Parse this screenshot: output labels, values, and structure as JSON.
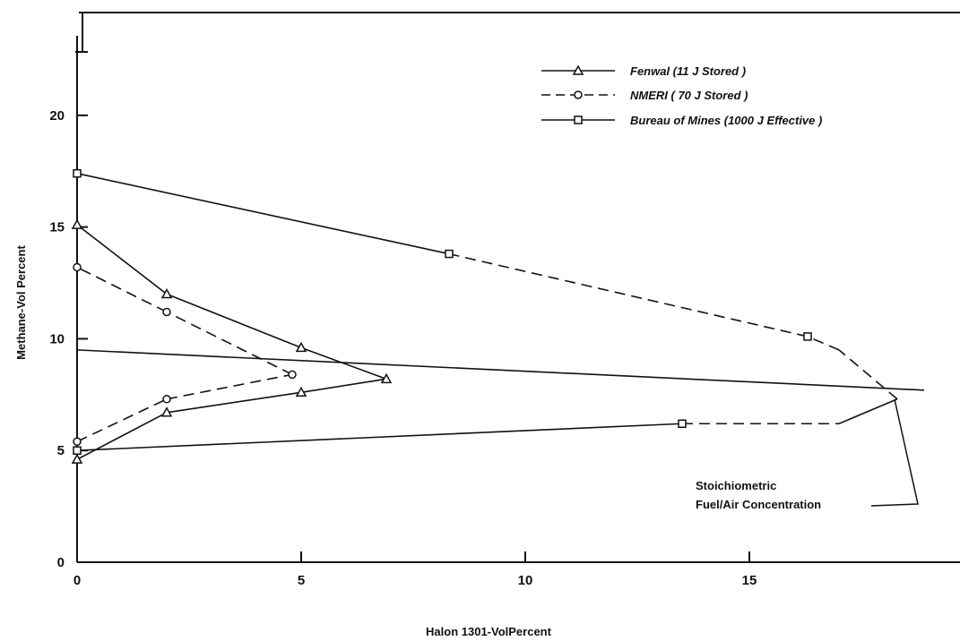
{
  "chart_data": {
    "type": "line",
    "title": "",
    "xlabel": "Halon 1301-VolPercent",
    "ylabel": "Methane-Vol Percent",
    "xlim": [
      0,
      19.7
    ],
    "ylim": [
      0,
      24.6
    ],
    "xticks": [
      0,
      5,
      10,
      15
    ],
    "xtick_labels": [
      "0",
      "5",
      "10",
      "15"
    ],
    "yticks": [
      0,
      5,
      10,
      15,
      20
    ],
    "ytick_labels": [
      "0",
      "5",
      "10",
      "15",
      "20"
    ],
    "legend_position": "top-right",
    "grid": false,
    "series": [
      {
        "name": "Fenwal (11 J Stored )",
        "marker": "triangle",
        "dash": "solid",
        "points": [
          [
            0,
            4.6
          ],
          [
            2,
            6.7
          ],
          [
            5,
            7.6
          ],
          [
            6.9,
            8.2
          ],
          [
            5,
            9.6
          ],
          [
            2,
            12.0
          ],
          [
            0,
            15.1
          ]
        ]
      },
      {
        "name": "NMERI ( 70 J Stored )",
        "marker": "circle",
        "dash": "dashed",
        "points": [
          [
            0,
            5.4
          ],
          [
            2,
            7.3
          ],
          [
            4.8,
            8.4
          ],
          [
            2,
            11.2
          ],
          [
            0,
            13.2
          ]
        ]
      },
      {
        "name": "Bureau of Mines (1000 J Effective )",
        "marker": "square",
        "dash": "solid",
        "points": [
          [
            0,
            5.0
          ],
          [
            13.5,
            6.2
          ],
          [
            17.0,
            6.2
          ],
          [
            18.3,
            7.3
          ],
          [
            17.0,
            9.5
          ],
          [
            16.3,
            10.1
          ],
          [
            8.3,
            13.8
          ],
          [
            0,
            17.4
          ],
          [
            0,
            18.0
          ]
        ],
        "markers_at": [
          0,
          1,
          5,
          6,
          7
        ],
        "dashed_segments": [
          1,
          3,
          4,
          5,
          7
        ]
      }
    ],
    "reference_line": {
      "points": [
        [
          0,
          9.5
        ],
        [
          18.9,
          7.7
        ]
      ]
    },
    "annotation": {
      "text_lines": [
        "Stoichiometric",
        "Fuel/Air Concentration"
      ]
    }
  }
}
